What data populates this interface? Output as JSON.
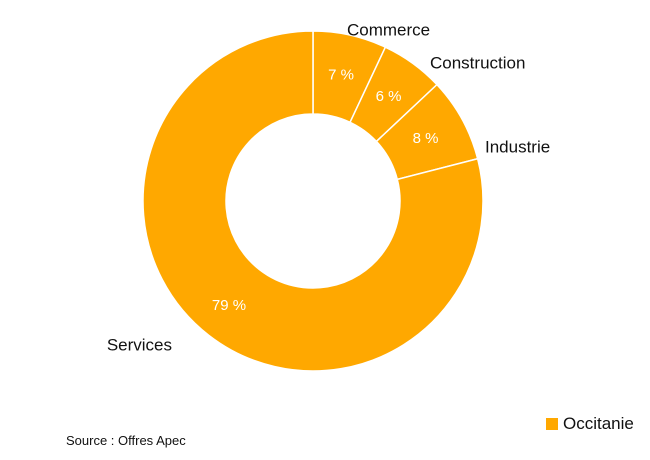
{
  "chart_data": {
    "type": "pie",
    "variant": "donut",
    "categories": [
      "Commerce",
      "Construction",
      "Industrie",
      "Services"
    ],
    "values": [
      7,
      6,
      8,
      79
    ],
    "value_labels": [
      "7 %",
      "6 %",
      "8 %",
      "79 %"
    ],
    "series": [
      {
        "name": "Occitanie",
        "values": [
          7,
          6,
          8,
          79
        ]
      }
    ],
    "color": "#FFA800",
    "legend_position": "bottom-right"
  },
  "legend": {
    "label": "Occitanie",
    "color": "#FFA800"
  },
  "source": "Source : Offres Apec"
}
